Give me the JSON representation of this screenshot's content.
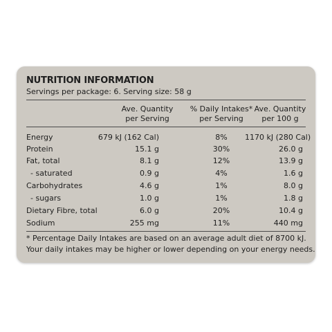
{
  "panel": {
    "title": "NUTRITION INFORMATION",
    "subtitle": "Servings per package: 6. Serving size: 58 g"
  },
  "columns": [
    {
      "line1": "Ave. Quantity",
      "line2": "per Serving"
    },
    {
      "line1": "% Daily Intakes*",
      "line2": "per Serving"
    },
    {
      "line1": "Ave. Quantity",
      "line2": "per 100 g"
    }
  ],
  "rows": [
    {
      "label": "Energy",
      "per_serving": "679 kJ (162 Cal)",
      "daily_intake": "8%",
      "per_100g": "1170 kJ (280 Cal)"
    },
    {
      "label": "Protein",
      "per_serving": "15.1 g",
      "daily_intake": "30%",
      "per_100g": "26.0 g"
    },
    {
      "label": "Fat, total",
      "per_serving": "8.1 g",
      "daily_intake": "12%",
      "per_100g": "13.9 g"
    },
    {
      "label": "- saturated",
      "per_serving": "0.9 g",
      "daily_intake": "4%",
      "per_100g": "1.6 g"
    },
    {
      "label": "Carbohydrates",
      "per_serving": "4.6 g",
      "daily_intake": "1%",
      "per_100g": "8.0 g"
    },
    {
      "label": "- sugars",
      "per_serving": "1.0 g",
      "daily_intake": "1%",
      "per_100g": "1.8 g"
    },
    {
      "label": "Dietary Fibre, total",
      "per_serving": "6.0 g",
      "daily_intake": "20%",
      "per_100g": "10.4 g"
    },
    {
      "label": "Sodium",
      "per_serving": "255 mg",
      "daily_intake": "11%",
      "per_100g": "440 mg"
    }
  ],
  "footnote": {
    "line1": "* Percentage Daily Intakes are based on an average adult diet of 8700 kJ.",
    "line2": "Your daily intakes may be higher or lower depending on your energy needs."
  },
  "colors": {
    "panel_background": "#cdc9c2",
    "page_background": "#ffffff",
    "text": "#1e1e1e",
    "rule": "#4a4a4a"
  }
}
